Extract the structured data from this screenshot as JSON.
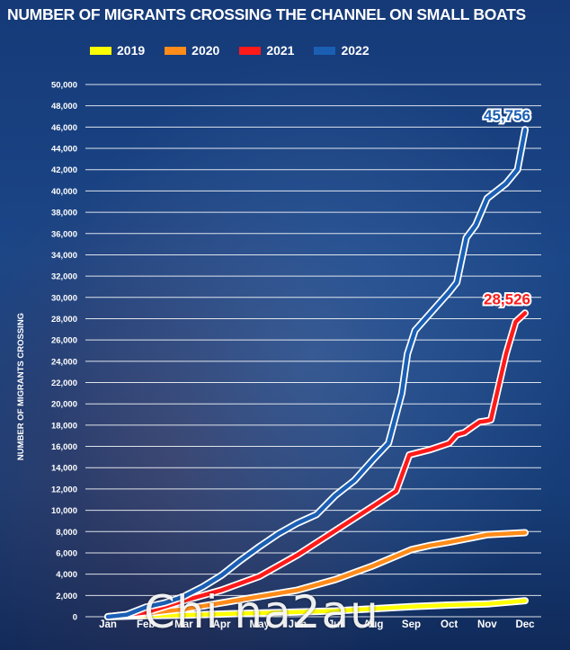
{
  "title": "NUMBER OF MIGRANTS CROSSING THE CHANNEL ON SMALL BOATS",
  "watermark": "Chi na2au",
  "chart_data": {
    "type": "line",
    "title": "NUMBER OF MIGRANTS CROSSING THE CHANNEL ON SMALL BOATS",
    "xlabel": "",
    "ylabel": "NUMBER OF MIGRANTS CROSSING",
    "ylim": [
      0,
      50000
    ],
    "xlim": [
      0,
      11
    ],
    "grid": true,
    "legend_position": "top",
    "categories": [
      "Jan",
      "Feb",
      "Mar",
      "Apr",
      "May",
      "Jun",
      "Jul",
      "Aug",
      "Sep",
      "Oct",
      "Nov",
      "Dec"
    ],
    "y_ticks": [
      0,
      2000,
      4000,
      6000,
      8000,
      10000,
      12000,
      14000,
      16000,
      18000,
      20000,
      22000,
      24000,
      26000,
      28000,
      30000,
      32000,
      34000,
      36000,
      38000,
      40000,
      42000,
      44000,
      46000,
      48000,
      50000
    ],
    "y_tick_labels": [
      "0",
      "2,000",
      "4,000",
      "6,000",
      "8,000",
      "10,000",
      "12,000",
      "14,000",
      "16,000",
      "18,000",
      "20,000",
      "22,000",
      "24,000",
      "26,000",
      "28,000",
      "30,000",
      "32,000",
      "34,000",
      "36,000",
      "38,000",
      "40,000",
      "42,000",
      "44,000",
      "46,000",
      "48,000",
      "50,000"
    ],
    "series": [
      {
        "name": "2019",
        "color": "#ffff00",
        "points": [
          [
            0,
            0
          ],
          [
            1,
            100
          ],
          [
            2,
            150
          ],
          [
            3,
            250
          ],
          [
            4,
            350
          ],
          [
            5,
            450
          ],
          [
            6,
            550
          ],
          [
            7,
            750
          ],
          [
            8,
            950
          ],
          [
            9,
            1100
          ],
          [
            10,
            1200
          ],
          [
            11,
            1500
          ]
        ]
      },
      {
        "name": "2020",
        "color": "#ff8c1a",
        "points": [
          [
            0,
            0
          ],
          [
            1,
            300
          ],
          [
            2,
            700
          ],
          [
            3,
            1300
          ],
          [
            4,
            1900
          ],
          [
            5,
            2500
          ],
          [
            6,
            3500
          ],
          [
            7,
            4800
          ],
          [
            8,
            6300
          ],
          [
            8.5,
            6700
          ],
          [
            9,
            7000
          ],
          [
            10,
            7700
          ],
          [
            11,
            7900
          ]
        ]
      },
      {
        "name": "2021",
        "color": "#ff1a1a",
        "points": [
          [
            0,
            0
          ],
          [
            1,
            400
          ],
          [
            2,
            1500
          ],
          [
            3,
            2500
          ],
          [
            4,
            3800
          ],
          [
            5,
            5800
          ],
          [
            6,
            8100
          ],
          [
            7,
            10400
          ],
          [
            7.6,
            11800
          ],
          [
            7.95,
            15200
          ],
          [
            8.5,
            15700
          ],
          [
            9,
            16300
          ],
          [
            9.2,
            17100
          ],
          [
            9.4,
            17300
          ],
          [
            9.6,
            17800
          ],
          [
            9.8,
            18300
          ],
          [
            10,
            18400
          ],
          [
            10.1,
            18500
          ],
          [
            10.5,
            24700
          ],
          [
            10.75,
            27700
          ],
          [
            11,
            28526
          ]
        ],
        "end_label": "28,526"
      },
      {
        "name": "2022",
        "color": "#1a5fb4",
        "points": [
          [
            0,
            0
          ],
          [
            0.5,
            200
          ],
          [
            1,
            900
          ],
          [
            1.5,
            1300
          ],
          [
            2,
            1900
          ],
          [
            2.5,
            2800
          ],
          [
            3,
            3900
          ],
          [
            3.5,
            5300
          ],
          [
            4,
            6600
          ],
          [
            4.5,
            7800
          ],
          [
            5,
            8800
          ],
          [
            5.5,
            9600
          ],
          [
            6,
            11400
          ],
          [
            6.5,
            12800
          ],
          [
            7,
            14800
          ],
          [
            7.4,
            16300
          ],
          [
            7.75,
            21000
          ],
          [
            7.9,
            24700
          ],
          [
            8.1,
            26900
          ],
          [
            8.5,
            28500
          ],
          [
            9,
            30500
          ],
          [
            9.2,
            31400
          ],
          [
            9.45,
            35600
          ],
          [
            9.7,
            36800
          ],
          [
            10,
            39300
          ],
          [
            10.5,
            40700
          ],
          [
            10.8,
            42000
          ],
          [
            11,
            45756
          ]
        ],
        "end_label": "45,756"
      }
    ]
  }
}
